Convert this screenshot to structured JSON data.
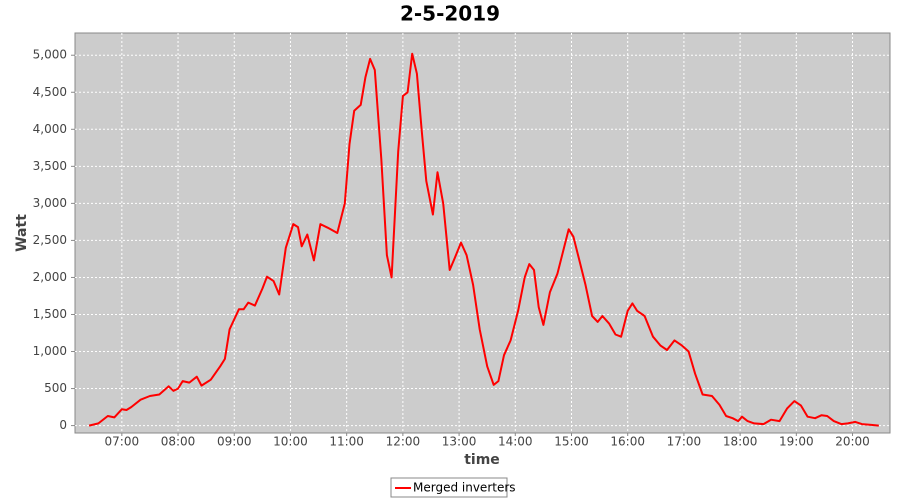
{
  "chart_data": {
    "type": "line",
    "title": "2-5-2019",
    "x_label": "time",
    "y_label": "Watt",
    "x": [
      "06:25",
      "06:35",
      "06:45",
      "06:52",
      "07:00",
      "07:05",
      "07:10",
      "07:20",
      "07:30",
      "07:40",
      "07:50",
      "07:55",
      "08:00",
      "08:05",
      "08:12",
      "08:20",
      "08:25",
      "08:35",
      "08:45",
      "08:50",
      "08:55",
      "09:05",
      "09:10",
      "09:15",
      "09:22",
      "09:30",
      "09:35",
      "09:42",
      "09:48",
      "09:55",
      "10:03",
      "10:08",
      "10:12",
      "10:18",
      "10:25",
      "10:32",
      "10:40",
      "10:50",
      "10:58",
      "11:03",
      "11:08",
      "11:15",
      "11:20",
      "11:25",
      "11:30",
      "11:37",
      "11:43",
      "11:48",
      "11:55",
      "12:00",
      "12:05",
      "12:10",
      "12:15",
      "12:20",
      "12:25",
      "12:32",
      "12:37",
      "12:43",
      "12:50",
      "12:55",
      "13:02",
      "13:08",
      "13:15",
      "13:22",
      "13:30",
      "13:37",
      "13:42",
      "13:48",
      "13:55",
      "14:03",
      "14:10",
      "14:15",
      "14:20",
      "14:25",
      "14:30",
      "14:37",
      "14:45",
      "14:52",
      "14:57",
      "15:02",
      "15:08",
      "15:15",
      "15:22",
      "15:28",
      "15:33",
      "15:40",
      "15:47",
      "15:53",
      "16:00",
      "16:05",
      "16:10",
      "16:18",
      "16:27",
      "16:35",
      "16:42",
      "16:50",
      "16:58",
      "17:05",
      "17:12",
      "17:20",
      "17:30",
      "17:38",
      "17:45",
      "17:52",
      "17:58",
      "18:02",
      "18:08",
      "18:15",
      "18:25",
      "18:33",
      "18:42",
      "18:50",
      "18:58",
      "19:05",
      "19:12",
      "19:20",
      "19:27",
      "19:33",
      "19:40",
      "19:48",
      "19:55",
      "20:03",
      "20:10",
      "20:20",
      "20:28"
    ],
    "series": [
      {
        "name": "Merged inverters",
        "color": "#ff0000",
        "values": [
          0,
          30,
          130,
          110,
          220,
          210,
          250,
          350,
          400,
          420,
          530,
          470,
          500,
          600,
          580,
          660,
          540,
          620,
          800,
          900,
          1300,
          1570,
          1570,
          1660,
          1620,
          1850,
          2010,
          1950,
          1770,
          2400,
          2720,
          2680,
          2420,
          2580,
          2230,
          2720,
          2670,
          2600,
          3000,
          3800,
          4250,
          4330,
          4700,
          4950,
          4800,
          3600,
          2300,
          2000,
          3700,
          4450,
          4500,
          5020,
          4750,
          4000,
          3300,
          2850,
          3420,
          3000,
          2100,
          2250,
          2470,
          2300,
          1900,
          1300,
          800,
          550,
          600,
          950,
          1150,
          1550,
          2000,
          2180,
          2100,
          1600,
          1360,
          1800,
          2050,
          2400,
          2650,
          2550,
          2250,
          1900,
          1480,
          1400,
          1480,
          1380,
          1230,
          1200,
          1550,
          1650,
          1550,
          1480,
          1200,
          1080,
          1020,
          1150,
          1080,
          1000,
          700,
          420,
          400,
          280,
          130,
          100,
          60,
          120,
          60,
          30,
          20,
          80,
          60,
          230,
          330,
          270,
          120,
          100,
          140,
          130,
          60,
          20,
          30,
          50,
          20,
          10,
          0
        ]
      }
    ],
    "xlim": [
      "06:10",
      "20:40"
    ],
    "xticks": [
      "07:00",
      "08:00",
      "09:00",
      "10:00",
      "11:00",
      "12:00",
      "13:00",
      "14:00",
      "15:00",
      "16:00",
      "17:00",
      "18:00",
      "19:00",
      "20:00"
    ],
    "ylim": [
      -100,
      5300
    ],
    "yticks": [
      0,
      500,
      {
        "value": 1000,
        "label": "1,000"
      },
      {
        "value": 1500,
        "label": "1,500"
      },
      {
        "value": 2000,
        "label": "2,000"
      },
      {
        "value": 2500,
        "label": "2,500"
      },
      {
        "value": 3000,
        "label": "3,000"
      },
      {
        "value": 3500,
        "label": "3,500"
      },
      {
        "value": 4000,
        "label": "4,000"
      },
      {
        "value": 4500,
        "label": "4,500"
      },
      {
        "value": 5000,
        "label": "5,000"
      }
    ],
    "grid": true,
    "legend": "bottom"
  }
}
